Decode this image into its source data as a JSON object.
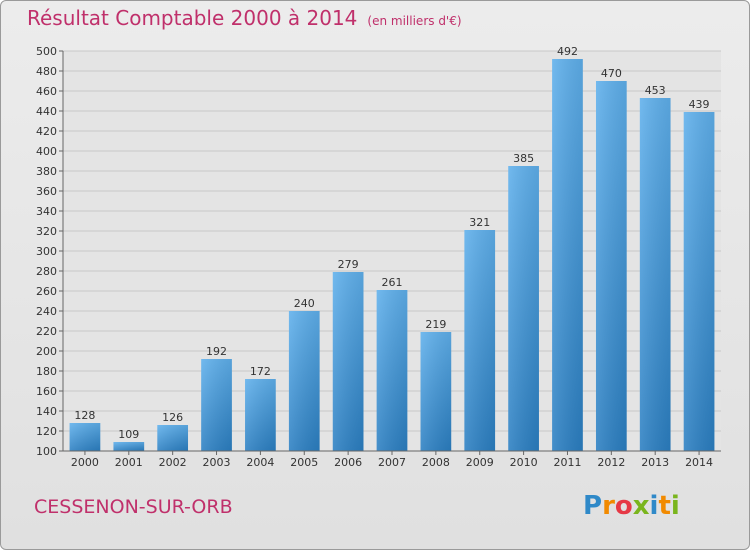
{
  "title": "Résultat Comptable 2000 à 2014",
  "subtitle": "(en milliers d'€)",
  "location": "CESSENON-SUR-ORB",
  "logo": {
    "letters": [
      "P",
      "r",
      "o",
      "x",
      "i",
      "t",
      "i"
    ],
    "colors": [
      "#2f89c8",
      "#f18a00",
      "#e63946",
      "#7ab51d",
      "#2f89c8",
      "#f18a00",
      "#7ab51d"
    ]
  },
  "colors": {
    "title": "#c0306b",
    "bar_top": "#5fb0ec",
    "bar_bottom": "#2b7fc2"
  },
  "chart_data": {
    "type": "bar",
    "categories": [
      "2000",
      "2001",
      "2002",
      "2003",
      "2004",
      "2005",
      "2006",
      "2007",
      "2008",
      "2009",
      "2010",
      "2011",
      "2012",
      "2013",
      "2014"
    ],
    "values": [
      128,
      109,
      126,
      192,
      172,
      240,
      279,
      261,
      219,
      321,
      385,
      492,
      470,
      453,
      439
    ],
    "ylim": [
      100,
      500
    ],
    "yticks": [
      100,
      120,
      140,
      160,
      180,
      200,
      220,
      240,
      260,
      280,
      300,
      320,
      340,
      360,
      380,
      400,
      420,
      440,
      460,
      480,
      500
    ],
    "grid": true,
    "legend": false
  }
}
